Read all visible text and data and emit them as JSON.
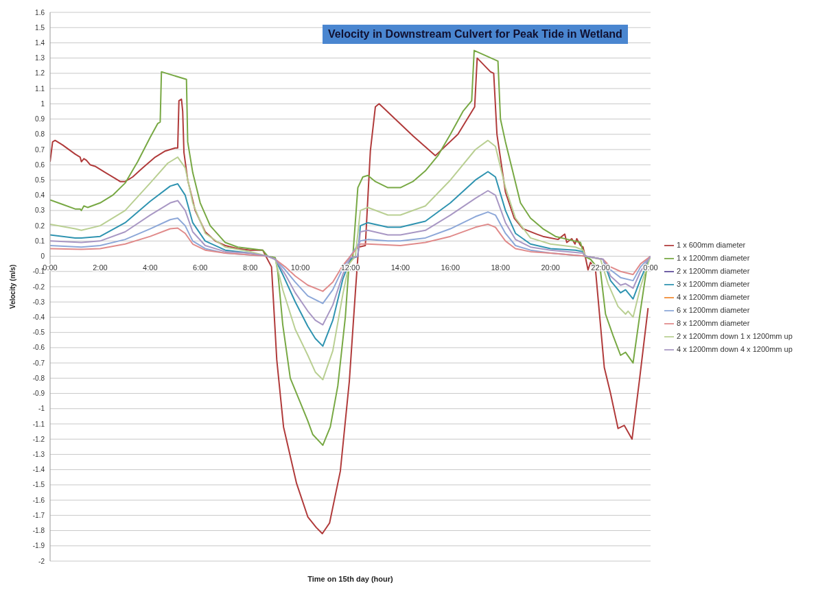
{
  "chart_data": {
    "type": "line",
    "title": "Velocity in Downstream Culvert for Peak Tide in Wetland",
    "xlabel": "Time on 15th day (hour)",
    "ylabel": "Velocity (m/s)",
    "xlim": [
      0,
      24
    ],
    "xticks": [
      {
        "value": 0,
        "label": "0:00"
      },
      {
        "value": 2,
        "label": "2:00"
      },
      {
        "value": 4,
        "label": "4:00"
      },
      {
        "value": 6,
        "label": "6:00"
      },
      {
        "value": 8,
        "label": "8:00"
      },
      {
        "value": 10,
        "label": "10:00"
      },
      {
        "value": 12,
        "label": "12:00"
      },
      {
        "value": 14,
        "label": "14:00"
      },
      {
        "value": 16,
        "label": "16:00"
      },
      {
        "value": 18,
        "label": "18:00"
      },
      {
        "value": 20,
        "label": "20:00"
      },
      {
        "value": 22,
        "label": "22:00"
      },
      {
        "value": 24,
        "label": "0:00"
      }
    ],
    "ylim": [
      -2,
      1.6
    ],
    "yticks": [
      -2,
      -1.9,
      -1.8,
      -1.7,
      -1.6,
      -1.5,
      -1.4,
      -1.3,
      -1.2,
      -1.1,
      -1,
      -0.9,
      -0.8,
      -0.7,
      -0.6,
      -0.5,
      -0.4,
      -0.3,
      -0.2,
      -0.1,
      0,
      0.1,
      0.2,
      0.3,
      0.4,
      0.5,
      0.6,
      0.7,
      0.8,
      0.9,
      1,
      1.1,
      1.2,
      1.3,
      1.4,
      1.5,
      1.6
    ],
    "grid": "y",
    "legend": "right",
    "series": [
      {
        "name": "1 x 600mm diameter",
        "color": "#b03a3a",
        "x": [
          0,
          0.1,
          0.2,
          0.5,
          1.0,
          1.2,
          1.25,
          1.35,
          1.45,
          1.6,
          1.8,
          2.2,
          2.6,
          2.8,
          3.0,
          3.3,
          3.7,
          4.2,
          4.6,
          5.0,
          5.1,
          5.15,
          5.25,
          5.3,
          5.35,
          5.5,
          5.8,
          6.2,
          6.6,
          7.0,
          7.5,
          8.0,
          8.5,
          8.59,
          8.85,
          9.06,
          9.33,
          9.85,
          10.3,
          10.64,
          10.88,
          11.17,
          11.6,
          11.96,
          12.2,
          12.33,
          12.6,
          12.8,
          13.0,
          13.15,
          14.5,
          15.4,
          16.3,
          16.97,
          17.07,
          17.6,
          17.73,
          17.86,
          18.2,
          18.55,
          18.9,
          19.45,
          19.7,
          20.3,
          20.57,
          20.65,
          20.85,
          20.98,
          21.05,
          21.2,
          21.3,
          21.4,
          21.5,
          21.6,
          21.8,
          22.15,
          22.4,
          22.7,
          22.95,
          23.26,
          23.55,
          23.9
        ],
        "values": [
          0.62,
          0.75,
          0.76,
          0.73,
          0.67,
          0.65,
          0.62,
          0.64,
          0.63,
          0.6,
          0.59,
          0.55,
          0.51,
          0.49,
          0.49,
          0.52,
          0.58,
          0.65,
          0.69,
          0.71,
          0.71,
          1.02,
          1.03,
          0.95,
          0.68,
          0.5,
          0.3,
          0.16,
          0.1,
          0.07,
          0.05,
          0.04,
          0.04,
          0.01,
          -0.07,
          -0.68,
          -1.12,
          -1.49,
          -1.71,
          -1.78,
          -1.82,
          -1.75,
          -1.41,
          -0.82,
          -0.24,
          0.06,
          0.07,
          0.69,
          0.98,
          1.0,
          0.79,
          0.66,
          0.8,
          0.98,
          1.3,
          1.21,
          1.2,
          0.8,
          0.42,
          0.25,
          0.18,
          0.145,
          0.13,
          0.11,
          0.145,
          0.09,
          0.115,
          0.08,
          0.115,
          0.07,
          0.06,
          -0.01,
          -0.09,
          -0.04,
          -0.09,
          -0.73,
          -0.9,
          -1.13,
          -1.11,
          -1.2,
          -0.82,
          -0.34
        ]
      },
      {
        "name": "1 x 1200mm diameter",
        "color": "#77a843",
        "x": [
          0,
          0.5,
          1.0,
          1.2,
          1.25,
          1.35,
          1.5,
          2.0,
          2.5,
          3.0,
          3.5,
          4.0,
          4.3,
          4.4,
          4.45,
          5.45,
          5.5,
          5.7,
          6.0,
          6.4,
          7.0,
          7.5,
          8.0,
          8.5,
          8.7,
          9.0,
          9.1,
          9.3,
          9.6,
          10.0,
          10.3,
          10.5,
          10.9,
          11.2,
          11.5,
          11.8,
          11.95,
          12.1,
          12.3,
          12.5,
          12.7,
          13.0,
          13.5,
          14.0,
          14.5,
          15.0,
          15.5,
          16.0,
          16.5,
          16.85,
          16.95,
          17.9,
          18.0,
          18.2,
          18.5,
          18.8,
          19.2,
          19.7,
          20.2,
          20.7,
          21.2,
          21.35,
          21.6,
          22.0,
          22.2,
          22.5,
          22.8,
          23.0,
          23.3,
          23.6,
          23.9,
          24
        ],
        "values": [
          0.37,
          0.34,
          0.31,
          0.31,
          0.3,
          0.33,
          0.32,
          0.35,
          0.4,
          0.48,
          0.62,
          0.78,
          0.87,
          0.88,
          1.21,
          1.16,
          0.75,
          0.55,
          0.35,
          0.2,
          0.09,
          0.06,
          0.05,
          0.04,
          0.0,
          -0.01,
          -0.1,
          -0.45,
          -0.8,
          -0.96,
          -1.08,
          -1.17,
          -1.24,
          -1.12,
          -0.85,
          -0.4,
          -0.05,
          0.0,
          0.45,
          0.52,
          0.53,
          0.49,
          0.45,
          0.45,
          0.49,
          0.56,
          0.66,
          0.8,
          0.95,
          1.02,
          1.35,
          1.28,
          0.9,
          0.75,
          0.55,
          0.35,
          0.25,
          0.18,
          0.13,
          0.11,
          0.09,
          0.0,
          -0.02,
          -0.1,
          -0.38,
          -0.52,
          -0.65,
          -0.63,
          -0.7,
          -0.35,
          -0.02,
          0.0
        ]
      },
      {
        "name": "2 x 1200mm  diameter",
        "color": "#5c4a99"
      },
      {
        "name": "3 x 1200mm  diameter",
        "color": "#2e93b0",
        "x": [
          0,
          1.0,
          1.25,
          2.0,
          3.0,
          4.0,
          4.8,
          5.1,
          5.4,
          5.7,
          6.2,
          7.0,
          8.0,
          8.7,
          9.0,
          9.3,
          9.8,
          10.3,
          10.6,
          10.9,
          11.3,
          11.7,
          12.0,
          12.3,
          12.4,
          12.7,
          13.5,
          14.0,
          15.0,
          16.0,
          17.0,
          17.5,
          17.8,
          18.2,
          18.6,
          19.2,
          20.0,
          21.0,
          21.3,
          21.4,
          22.1,
          22.4,
          22.8,
          23.0,
          23.3,
          23.6,
          24
        ],
        "values": [
          0.14,
          0.12,
          0.12,
          0.13,
          0.22,
          0.36,
          0.46,
          0.475,
          0.4,
          0.22,
          0.1,
          0.04,
          0.02,
          0.0,
          -0.02,
          -0.12,
          -0.3,
          -0.46,
          -0.54,
          -0.59,
          -0.42,
          -0.15,
          -0.02,
          0.0,
          0.2,
          0.22,
          0.19,
          0.19,
          0.23,
          0.35,
          0.5,
          0.555,
          0.52,
          0.3,
          0.15,
          0.08,
          0.05,
          0.04,
          0.03,
          0.0,
          -0.02,
          -0.16,
          -0.24,
          -0.22,
          -0.28,
          -0.15,
          0.0
        ]
      },
      {
        "name": "4 x 1200mm  diameter",
        "color": "#f28a30"
      },
      {
        "name": "6 x 1200mm  diameter",
        "color": "#8ca7d8",
        "x": [
          0,
          1.25,
          2.0,
          3.0,
          4.0,
          4.8,
          5.1,
          5.4,
          5.7,
          6.2,
          7.0,
          8.7,
          9.0,
          9.4,
          9.8,
          10.3,
          10.9,
          11.3,
          11.7,
          12.0,
          12.4,
          12.7,
          13.5,
          14.0,
          15.0,
          16.0,
          17.0,
          17.5,
          17.8,
          18.2,
          18.6,
          19.2,
          20.0,
          21.4,
          22.1,
          22.4,
          22.8,
          23.3,
          23.6,
          24
        ],
        "values": [
          0.07,
          0.06,
          0.07,
          0.11,
          0.18,
          0.24,
          0.25,
          0.2,
          0.1,
          0.05,
          0.02,
          0.0,
          -0.02,
          -0.09,
          -0.17,
          -0.26,
          -0.31,
          -0.22,
          -0.08,
          0.0,
          0.1,
          0.11,
          0.1,
          0.1,
          0.12,
          0.18,
          0.26,
          0.29,
          0.27,
          0.15,
          0.07,
          0.04,
          0.02,
          0.0,
          -0.02,
          -0.09,
          -0.14,
          -0.16,
          -0.07,
          0.0
        ]
      },
      {
        "name": "8 x 1200mm  diameter",
        "color": "#e08a8a",
        "x": [
          0,
          1.25,
          2.0,
          3.0,
          4.0,
          4.8,
          5.1,
          5.4,
          5.7,
          6.2,
          7.0,
          8.7,
          9.0,
          9.4,
          9.8,
          10.3,
          10.9,
          11.3,
          11.7,
          12.0,
          12.4,
          12.7,
          14.0,
          15.0,
          16.0,
          17.0,
          17.5,
          17.8,
          18.2,
          18.6,
          19.2,
          20.0,
          21.4,
          22.1,
          22.4,
          22.8,
          23.3,
          23.6,
          24
        ],
        "values": [
          0.05,
          0.045,
          0.05,
          0.08,
          0.13,
          0.18,
          0.185,
          0.15,
          0.08,
          0.04,
          0.02,
          0.0,
          -0.02,
          -0.07,
          -0.13,
          -0.19,
          -0.23,
          -0.17,
          -0.06,
          0.0,
          0.08,
          0.08,
          0.07,
          0.09,
          0.13,
          0.19,
          0.21,
          0.19,
          0.1,
          0.05,
          0.03,
          0.02,
          0.0,
          -0.02,
          -0.07,
          -0.1,
          -0.12,
          -0.05,
          0.0
        ]
      },
      {
        "name": "2 x 1200mm down 1 x 1200mm up",
        "color": "#b9cf92",
        "x": [
          0,
          1.0,
          1.25,
          2.0,
          3.0,
          4.0,
          4.7,
          5.1,
          5.4,
          5.7,
          6.2,
          7.0,
          8.0,
          8.7,
          9.0,
          9.3,
          9.8,
          10.3,
          10.6,
          10.9,
          11.3,
          11.7,
          11.95,
          12.2,
          12.4,
          12.7,
          13.5,
          14.0,
          15.0,
          16.0,
          17.0,
          17.5,
          17.8,
          18.2,
          18.6,
          19.2,
          20.0,
          21.0,
          21.3,
          21.4,
          22.0,
          22.3,
          22.7,
          23.0,
          23.1,
          23.3,
          23.6,
          24
        ],
        "values": [
          0.21,
          0.18,
          0.17,
          0.2,
          0.3,
          0.48,
          0.61,
          0.65,
          0.58,
          0.35,
          0.15,
          0.06,
          0.03,
          0.0,
          -0.02,
          -0.22,
          -0.48,
          -0.65,
          -0.76,
          -0.81,
          -0.62,
          -0.25,
          -0.05,
          0.0,
          0.3,
          0.32,
          0.27,
          0.27,
          0.33,
          0.5,
          0.7,
          0.76,
          0.72,
          0.45,
          0.25,
          0.12,
          0.08,
          0.06,
          0.04,
          0.0,
          -0.02,
          -0.18,
          -0.33,
          -0.38,
          -0.36,
          -0.4,
          -0.2,
          0.0
        ]
      },
      {
        "name": "4 x 1200mm down 4 x 1200mm up",
        "color": "#a897c4",
        "x": [
          0,
          1.25,
          2.0,
          3.0,
          4.0,
          4.8,
          5.1,
          5.4,
          5.7,
          6.2,
          7.0,
          8.0,
          8.7,
          9.0,
          9.4,
          9.8,
          10.3,
          10.6,
          10.9,
          11.3,
          11.7,
          12.0,
          12.3,
          12.4,
          12.7,
          13.5,
          14.0,
          15.0,
          16.0,
          17.0,
          17.5,
          17.8,
          18.2,
          18.6,
          19.2,
          20.0,
          21.3,
          21.4,
          22.1,
          22.4,
          22.8,
          23.0,
          23.3,
          23.6,
          24
        ],
        "values": [
          0.1,
          0.09,
          0.1,
          0.16,
          0.27,
          0.35,
          0.365,
          0.3,
          0.16,
          0.07,
          0.03,
          0.02,
          0.0,
          -0.02,
          -0.12,
          -0.24,
          -0.36,
          -0.42,
          -0.45,
          -0.32,
          -0.12,
          -0.01,
          0.0,
          0.16,
          0.17,
          0.14,
          0.14,
          0.17,
          0.27,
          0.38,
          0.43,
          0.4,
          0.22,
          0.11,
          0.06,
          0.04,
          0.02,
          0.0,
          -0.02,
          -0.13,
          -0.19,
          -0.18,
          -0.21,
          -0.1,
          0.0
        ]
      }
    ]
  }
}
